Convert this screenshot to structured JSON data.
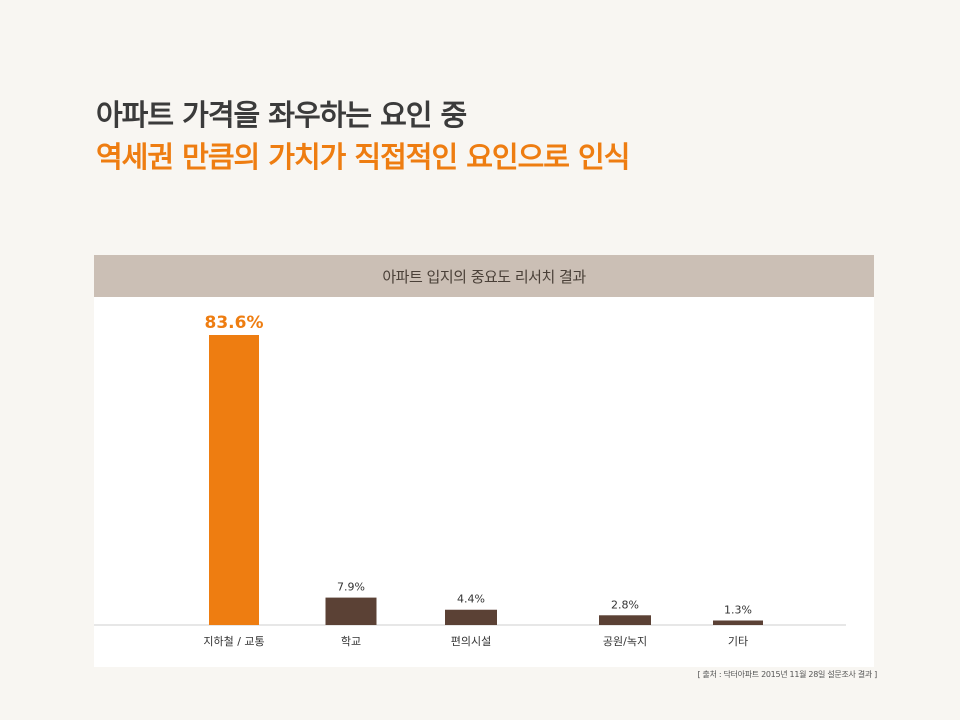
{
  "headline": {
    "line1": "아파트 가격을 좌우하는 요인 중",
    "line2": "역세권 만큼의 가치가 직접적인 요인으로 인식"
  },
  "source_note": "[ 출처 : 닥터아파트 2015년 11월 28일 설문조사 결과 ]",
  "colors": {
    "highlight": "#ee7d11",
    "bar": "#5b4135",
    "header": "#cbbfb5",
    "headline_dark": "#3b3b3b"
  },
  "chart_data": {
    "type": "bar",
    "title": "아파트 입지의 중요도 리서치 결과",
    "categories": [
      "지하철 / 교통",
      "학교",
      "편의시설",
      "공원/녹지",
      "기타"
    ],
    "values": [
      83.6,
      7.9,
      4.4,
      2.8,
      1.3
    ],
    "data_labels": [
      "83.6%",
      "7.9%",
      "4.4%",
      "2.8%",
      "1.3%"
    ],
    "unit": "%",
    "highlight_index": 0,
    "ylim": [
      0,
      83.6
    ],
    "grid": false,
    "legend": "none"
  }
}
